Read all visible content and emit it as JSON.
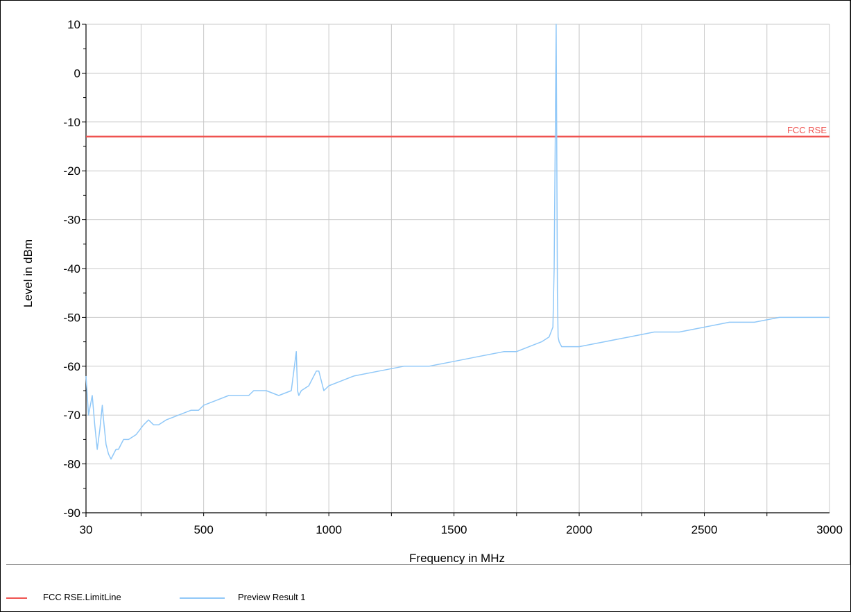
{
  "chart_data": {
    "type": "line",
    "xlabel": "Frequency in MHz",
    "ylabel": "Level in dBm",
    "xlim": [
      30,
      3000
    ],
    "ylim": [
      -90,
      10
    ],
    "x_tick_labels": [
      "30",
      "500",
      "1000",
      "1500",
      "2000",
      "2500",
      "3000"
    ],
    "x_ticks": [
      30,
      500,
      1000,
      1500,
      2000,
      2500,
      3000
    ],
    "y_ticks": [
      10,
      0,
      -10,
      -20,
      -30,
      -40,
      -50,
      -60,
      -70,
      -80,
      -90
    ],
    "y_tick_labels": [
      "10",
      "0",
      "-10",
      "-20",
      "-30",
      "-40",
      "-50",
      "-60",
      "-70",
      "-80",
      "-90"
    ],
    "grid": true,
    "limit_line": {
      "label": "FCC RSE",
      "value": -13,
      "color": "#ef5350"
    },
    "series": [
      {
        "name": "Preview Result 1",
        "color": "#90c8f8",
        "x": [
          30,
          40,
          55,
          65,
          75,
          85,
          95,
          100,
          110,
          120,
          130,
          140,
          150,
          160,
          170,
          180,
          200,
          230,
          260,
          280,
          300,
          320,
          350,
          400,
          450,
          480,
          500,
          550,
          600,
          650,
          680,
          700,
          750,
          800,
          850,
          870,
          875,
          880,
          890,
          920,
          950,
          960,
          980,
          1000,
          1050,
          1100,
          1200,
          1300,
          1400,
          1500,
          1600,
          1700,
          1750,
          1800,
          1850,
          1880,
          1895,
          1900,
          1905,
          1908,
          1910,
          1913,
          1916,
          1920,
          1930,
          1950,
          2000,
          2100,
          2200,
          2300,
          2400,
          2500,
          2600,
          2700,
          2800,
          2900,
          3000
        ],
        "values": [
          -62,
          -70,
          -66,
          -72,
          -77,
          -73,
          -68,
          -71,
          -76,
          -78,
          -79,
          -78,
          -77,
          -77,
          -76,
          -75,
          -75,
          -74,
          -72,
          -71,
          -72,
          -72,
          -71,
          -70,
          -69,
          -69,
          -68,
          -67,
          -66,
          -66,
          -66,
          -65,
          -65,
          -66,
          -65,
          -57,
          -65,
          -66,
          -65,
          -64,
          -61,
          -61,
          -65,
          -64,
          -63,
          -62,
          -61,
          -60,
          -60,
          -59,
          -58,
          -57,
          -57,
          -56,
          -55,
          -54,
          -52,
          -40,
          -10,
          10,
          -10,
          -45,
          -54,
          -55,
          -56,
          -56,
          -56,
          -55,
          -54,
          -53,
          -53,
          -52,
          -51,
          -51,
          -50,
          -50,
          -50
        ]
      }
    ],
    "legend": [
      {
        "label": "FCC RSE.LimitLine",
        "color": "#ef5350"
      },
      {
        "label": "Preview Result 1",
        "color": "#90c8f8"
      }
    ],
    "legend_placement": "bottom-left"
  }
}
